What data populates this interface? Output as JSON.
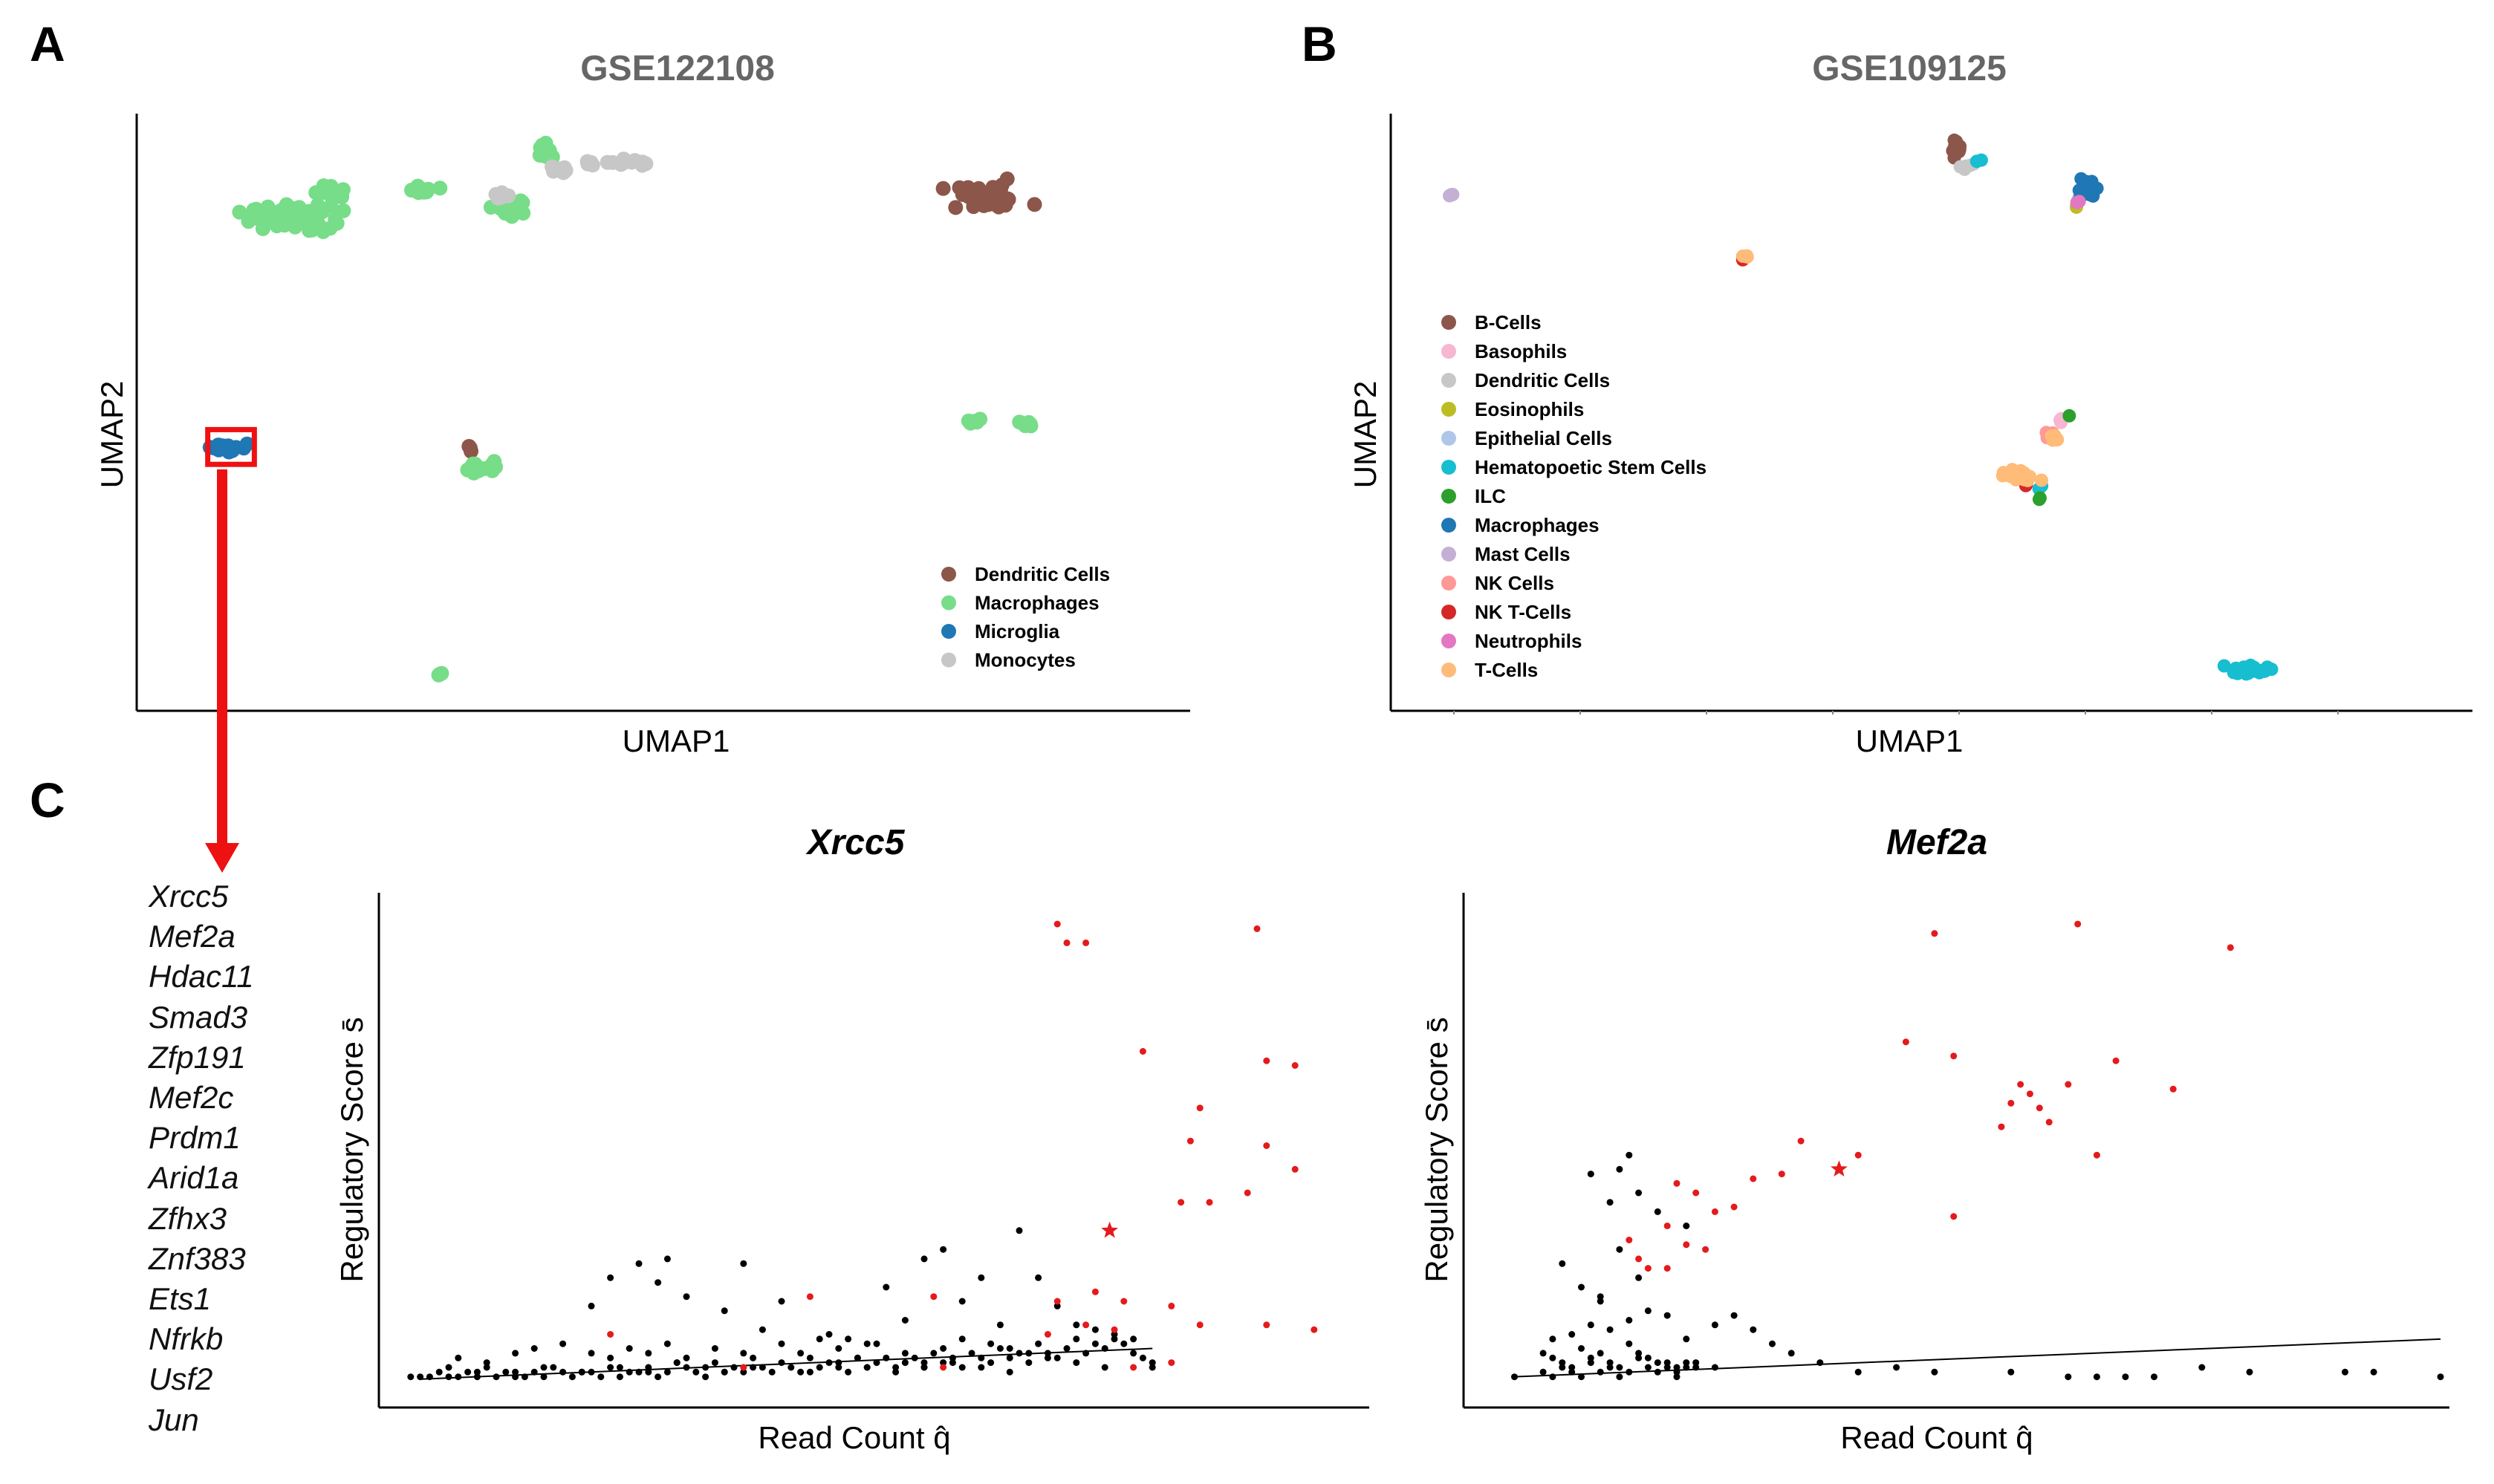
{
  "panel_letters": [
    "A",
    "B",
    "C"
  ],
  "gene_list": [
    "Xrcc5",
    "Mef2a",
    "Hdac11",
    "Smad3",
    "Zfp191",
    "Mef2c",
    "Prdm1",
    "Arid1a",
    "Zfhx3",
    "Znf383",
    "Ets1",
    "Nfrkb",
    "Usf2",
    "Jun"
  ],
  "chart_data": [
    {
      "type": "scatter",
      "title": "GSE122108",
      "xlabel": "UMAP1",
      "ylabel": "UMAP2",
      "xlim": [
        0,
        100
      ],
      "ylim": [
        0,
        100
      ],
      "legend_position": "bottom-right",
      "highlight": {
        "label": "Microglia",
        "x": [
          6,
          10.5
        ],
        "y": [
          41,
          47
        ]
      },
      "series": [
        {
          "name": "Dendritic Cells",
          "color": "#8c564b",
          "clusters": [
            [
              81,
              87,
              4,
              2,
              40
            ],
            [
              31.5,
              44,
              0.5,
              0.8,
              3
            ]
          ]
        },
        {
          "name": "Macrophages",
          "color": "#77dd88",
          "clusters": [
            [
              14,
              83.5,
              3.5,
              2,
              60
            ],
            [
              18,
              88,
              1.5,
              1,
              20
            ],
            [
              27,
              88.5,
              1.4,
              0.6,
              10
            ],
            [
              35.5,
              85.5,
              1.2,
              1.5,
              20
            ],
            [
              38.5,
              95,
              1,
              1.5,
              10
            ],
            [
              32.5,
              40.5,
              1.5,
              0.9,
              15
            ],
            [
              80,
              48.5,
              1.2,
              0.5,
              6
            ],
            [
              85,
              48,
              0.8,
              0.5,
              5
            ],
            [
              28.5,
              5,
              0.4,
              0.4,
              3
            ]
          ]
        },
        {
          "name": "Microglia",
          "color": "#1f77b4",
          "clusters": [
            [
              8,
              44,
              1.6,
              0.8,
              20
            ]
          ]
        },
        {
          "name": "Monocytes",
          "color": "#c7c7c7",
          "clusters": [
            [
              45,
              93,
              3,
              0.7,
              15
            ],
            [
              39.5,
              92,
              1,
              0.6,
              8
            ],
            [
              34,
              87.5,
              0.8,
              0.6,
              5
            ]
          ]
        }
      ]
    },
    {
      "type": "scatter",
      "title": "GSE109125",
      "xlabel": "UMAP1",
      "ylabel": "UMAP2",
      "xlim": [
        0,
        100
      ],
      "ylim": [
        0,
        100
      ],
      "legend_position": "left",
      "series": [
        {
          "name": "B-Cells",
          "color": "#8c564b",
          "clusters": [
            [
              55.5,
              95.5,
              0.4,
              1.8,
              15
            ]
          ]
        },
        {
          "name": "Basophils",
          "color": "#f7b6d2",
          "clusters": [
            [
              66.5,
              48.5,
              0.6,
              0.5,
              4
            ]
          ]
        },
        {
          "name": "Dendritic Cells",
          "color": "#c7c7c7",
          "clusters": [
            [
              56.5,
              92.5,
              0.8,
              0.7,
              6
            ],
            [
              68.5,
              86.5,
              0.4,
              0.4,
              2
            ]
          ]
        },
        {
          "name": "Eosinophils",
          "color": "#bcbd22",
          "clusters": [
            [
              68.5,
              85.5,
              0.3,
              0.4,
              2
            ]
          ]
        },
        {
          "name": "Epithelial Cells",
          "color": "#aec7e8",
          "clusters": [
            [
              69,
              87.5,
              0.3,
              0.3,
              2
            ]
          ]
        },
        {
          "name": "Hematopoetic Stem Cells",
          "color": "#17becf",
          "clusters": [
            [
              58,
              93.5,
              0.3,
              0.3,
              2
            ],
            [
              64.5,
              37,
              0.3,
              0.3,
              2
            ],
            [
              87,
              5.5,
              1.8,
              0.8,
              25
            ]
          ]
        },
        {
          "name": "ILC",
          "color": "#2ca02c",
          "clusters": [
            [
              67.5,
              49.5,
              0.2,
              0.2,
              1
            ],
            [
              64.5,
              35,
              0.2,
              0.3,
              2
            ]
          ]
        },
        {
          "name": "Macrophages",
          "color": "#1f77b4",
          "clusters": [
            [
              69.5,
              88.5,
              0.9,
              1.2,
              25
            ]
          ]
        },
        {
          "name": "Mast Cells",
          "color": "#c5b0d5",
          "clusters": [
            [
              1,
              87.5,
              0.3,
              0.3,
              4
            ]
          ]
        },
        {
          "name": "NK Cells",
          "color": "#ff9896",
          "clusters": [
            [
              65.5,
              46,
              0.6,
              1,
              5
            ]
          ]
        },
        {
          "name": "NK T-Cells",
          "color": "#d62728",
          "clusters": [
            [
              32.5,
              76.5,
              0.3,
              0.4,
              4
            ],
            [
              63,
              37.5,
              0.3,
              0.3,
              2
            ]
          ]
        },
        {
          "name": "Neutrophils",
          "color": "#e377c2",
          "clusters": [
            [
              68.5,
              86,
              0.3,
              0.3,
              2
            ]
          ]
        },
        {
          "name": "T-Cells",
          "color": "#ffbb78",
          "clusters": [
            [
              62.5,
              39,
              1.5,
              1.2,
              30
            ],
            [
              66,
              45.5,
              0.5,
              0.5,
              5
            ],
            [
              32.5,
              77,
              0.3,
              0.3,
              3
            ]
          ]
        }
      ]
    },
    {
      "type": "scatter",
      "title": "Xrcc5",
      "xlabel": "Read Count q̂",
      "ylabel": "Regulatory Score s̄",
      "xlim": [
        0,
        100
      ],
      "ylim": [
        0,
        100
      ],
      "series": [
        {
          "name": "",
          "color": "#000000",
          "x": [
            1,
            2,
            3,
            4,
            5,
            6,
            7,
            8,
            9,
            10,
            11,
            12,
            13,
            14,
            15,
            16,
            17,
            18,
            19,
            20,
            21,
            22,
            23,
            24,
            25,
            26,
            27,
            28,
            29,
            30,
            31,
            32,
            33,
            34,
            35,
            36,
            37,
            38,
            39,
            40,
            41,
            42,
            43,
            44,
            45,
            46,
            47,
            48,
            49,
            50,
            51,
            52,
            53,
            54,
            55,
            56,
            57,
            58,
            59,
            60,
            61,
            62,
            63,
            64,
            65,
            66,
            67,
            68,
            69,
            70,
            71,
            72,
            73,
            74,
            75,
            76,
            77,
            78,
            79,
            6,
            9,
            12,
            14,
            17,
            20,
            22,
            24,
            26,
            28,
            30,
            33,
            36,
            40,
            42,
            44,
            46,
            48,
            50,
            53,
            55,
            57,
            59,
            62,
            64,
            66,
            20,
            22,
            25,
            27,
            28,
            30,
            34,
            36,
            38,
            40,
            45,
            47,
            49,
            51,
            53,
            55,
            57,
            59,
            61,
            63,
            65,
            67,
            69,
            71,
            73,
            75,
            77,
            79,
            5,
            8,
            12,
            15,
            19,
            23,
            26,
            29,
            32,
            34,
            37,
            43,
            46,
            49,
            52,
            55,
            58,
            61,
            64,
            68,
            71,
            74
          ],
          "y": [
            1,
            1,
            1,
            2,
            1,
            1,
            2,
            1,
            3,
            1,
            2,
            1,
            1,
            2,
            1,
            3,
            2,
            1,
            2,
            2,
            1,
            3,
            1,
            2,
            2,
            3,
            1,
            2,
            4,
            3,
            2,
            1,
            4,
            2,
            3,
            2,
            5,
            3,
            2,
            4,
            3,
            2,
            5,
            3,
            4,
            3,
            2,
            5,
            3,
            4,
            5,
            3,
            4,
            5,
            3,
            6,
            4,
            5,
            3,
            6,
            5,
            4,
            7,
            5,
            6,
            4,
            8,
            6,
            5,
            7,
            9,
            6,
            8,
            7,
            9,
            8,
            6,
            5,
            3,
            5,
            4,
            6,
            7,
            8,
            6,
            5,
            7,
            6,
            8,
            5,
            7,
            6,
            8,
            6,
            9,
            7,
            5,
            8,
            6,
            4,
            7,
            9,
            8,
            7,
            6,
            16,
            22,
            25,
            21,
            26,
            18,
            15,
            25,
            11,
            17,
            10,
            9,
            8,
            20,
            13,
            26,
            28,
            17,
            22,
            12,
            32,
            22,
            16,
            12,
            11,
            10,
            9,
            4,
            3,
            2,
            2,
            3,
            2,
            3,
            2,
            4,
            3,
            2,
            3,
            2,
            4,
            3,
            2,
            3,
            4,
            3,
            2,
            5,
            4,
            3
          ]
        },
        {
          "name": "",
          "color": "#e41a1c",
          "x": [
            69,
            70,
            72,
            78,
            84,
            83,
            82,
            90,
            91,
            85,
            89,
            91,
            94,
            94,
            56,
            43,
            69,
            73,
            76,
            81,
            75,
            84,
            91,
            96,
            68,
            22,
            36,
            57,
            72,
            77,
            81
          ],
          "y": [
            97,
            93,
            93,
            70,
            58,
            51,
            38,
            96,
            68,
            38,
            40,
            50,
            45,
            67,
            18,
            18,
            17,
            19,
            17,
            16,
            11,
            12,
            12,
            11,
            10,
            10,
            3,
            3,
            12,
            3,
            4
          ]
        },
        {
          "name": "",
          "color": "#e41a1c",
          "marker": "star",
          "x": [
            74.5
          ],
          "y": [
            32
          ]
        }
      ],
      "trendline": {
        "x": [
          2,
          79
        ],
        "y": [
          0.5,
          7
        ]
      }
    },
    {
      "type": "scatter",
      "title": "Mef2a",
      "xlabel": "Read Count q̂",
      "ylabel": "Regulatory Score s̄",
      "xlim": [
        0,
        100
      ],
      "ylim": [
        0,
        100
      ],
      "series": [
        {
          "name": "",
          "color": "#000000",
          "x": [
            3,
            6,
            7,
            8,
            9,
            10,
            11,
            12,
            13,
            14,
            15,
            16,
            17,
            18,
            19,
            20,
            21,
            6,
            7,
            8,
            9,
            10,
            11,
            12,
            13,
            14,
            15,
            16,
            17,
            18,
            19,
            20,
            21,
            22,
            7,
            9,
            11,
            13,
            15,
            17,
            19,
            21,
            10,
            12,
            14,
            16,
            18,
            8,
            11,
            13,
            15,
            12,
            16,
            14,
            21,
            24,
            26,
            28,
            30,
            20,
            22,
            24,
            32,
            35,
            39,
            43,
            47,
            55,
            61,
            64,
            67,
            70,
            75,
            80,
            90,
            93,
            100
          ],
          "y": [
            1,
            2,
            1,
            3,
            2,
            1,
            4,
            2,
            3,
            1,
            2,
            5,
            3,
            2,
            4,
            1,
            3,
            6,
            5,
            4,
            3,
            7,
            5,
            6,
            4,
            3,
            8,
            6,
            5,
            4,
            3,
            2,
            4,
            3,
            9,
            10,
            12,
            11,
            13,
            15,
            14,
            9,
            20,
            17,
            28,
            22,
            36,
            25,
            44,
            38,
            48,
            18,
            40,
            45,
            33,
            12,
            14,
            11,
            8,
            3,
            4,
            3,
            6,
            4,
            2,
            3,
            2,
            2,
            1,
            1,
            1,
            1,
            3,
            2,
            2,
            2,
            1
          ]
        },
        {
          "name": "",
          "color": "#e41a1c",
          "x": [
            47,
            62,
            78,
            66,
            72,
            49,
            56,
            44,
            55,
            57,
            61,
            58,
            54,
            59,
            64,
            33,
            39,
            28,
            31,
            20,
            19,
            16,
            24,
            26,
            21,
            19,
            22,
            15,
            17,
            23,
            49
          ],
          "y": [
            95,
            97,
            92,
            68,
            62,
            69,
            63,
            72,
            59,
            61,
            63,
            58,
            54,
            55,
            48,
            51,
            48,
            43,
            44,
            42,
            33,
            26,
            36,
            37,
            29,
            24,
            40,
            30,
            24,
            28,
            35
          ]
        },
        {
          "name": "",
          "color": "#e41a1c",
          "marker": "star",
          "x": [
            37
          ],
          "y": [
            45
          ]
        }
      ],
      "trendline": {
        "x": [
          3,
          100
        ],
        "y": [
          1,
          9
        ]
      }
    }
  ]
}
